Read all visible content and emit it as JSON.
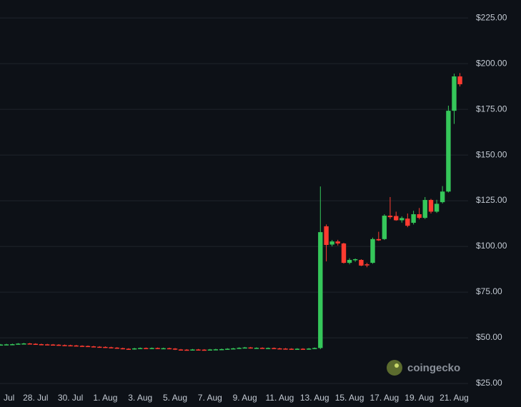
{
  "chart_data": {
    "type": "candlestick",
    "x": [
      0,
      0.33,
      0.67,
      1,
      1.33,
      1.67,
      2,
      2.33,
      2.67,
      3,
      3.33,
      3.67,
      4,
      4.33,
      4.67,
      5,
      5.33,
      5.67,
      6,
      6.33,
      6.67,
      7,
      7.33,
      7.67,
      8,
      8.33,
      8.67,
      9,
      9.33,
      9.67,
      10,
      10.33,
      10.67,
      11,
      11.33,
      11.67,
      12,
      12.33,
      12.67,
      13,
      13.33,
      13.67,
      14,
      14.33,
      14.67,
      15,
      15.33,
      15.67,
      16,
      16.33,
      16.67,
      17,
      17.33,
      17.67,
      18,
      18.33,
      18.67,
      19,
      19.33,
      19.67,
      20,
      20.33,
      20.67,
      21,
      21.33,
      21.67,
      22,
      22.33,
      22.67,
      23,
      23.33,
      23.67,
      24,
      24.33,
      24.67,
      25,
      25.33,
      25.67,
      26,
      26.33
    ],
    "open": [
      46.2,
      46.3,
      46.4,
      46.5,
      46.8,
      46.9,
      46.7,
      46.5,
      46.4,
      46.3,
      46.2,
      46.0,
      45.9,
      45.8,
      45.6,
      45.5,
      45.3,
      45.1,
      45.0,
      44.8,
      44.6,
      44.3,
      44.0,
      43.8,
      44.2,
      44.4,
      44.3,
      44.4,
      44.2,
      44.3,
      44.1,
      43.6,
      43.5,
      43.4,
      43.6,
      43.5,
      43.4,
      43.6,
      43.7,
      43.8,
      44.0,
      44.2,
      44.5,
      44.7,
      44.4,
      44.5,
      44.3,
      44.4,
      44.2,
      44.1,
      44.0,
      43.9,
      44.0,
      43.8,
      44.1,
      44.4,
      111.0,
      101.0,
      102.7,
      101.6,
      91.0,
      92.6,
      92.6,
      90.2,
      91.0,
      104.0,
      104.0,
      116.8,
      116.6,
      114.3,
      115.2,
      112.9,
      117.6,
      115.6,
      125.4,
      119.0,
      124.2,
      130.0,
      174.2,
      193.0
    ],
    "high": [
      46.6,
      46.7,
      46.8,
      47.1,
      47.2,
      47.2,
      47.0,
      46.8,
      46.7,
      46.6,
      46.5,
      46.3,
      46.2,
      46.1,
      45.9,
      45.8,
      45.6,
      45.4,
      45.3,
      45.1,
      44.9,
      44.6,
      44.3,
      44.5,
      44.7,
      44.7,
      44.7,
      44.7,
      44.6,
      44.6,
      44.4,
      43.9,
      43.8,
      43.9,
      43.9,
      43.8,
      43.9,
      44.0,
      44.1,
      44.3,
      44.5,
      44.8,
      45.0,
      45.0,
      44.8,
      44.8,
      44.7,
      44.7,
      44.5,
      44.4,
      44.3,
      44.3,
      44.3,
      44.4,
      44.7,
      132.8,
      112.0,
      103.5,
      103.6,
      102.0,
      93.5,
      93.4,
      93.0,
      91.0,
      104.8,
      108.0,
      117.6,
      127.0,
      119.0,
      116.4,
      118.0,
      119.5,
      121.0,
      127.0,
      126.0,
      125.5,
      133.0,
      177.0,
      194.5,
      194.8
    ],
    "low": [
      45.9,
      46.0,
      46.1,
      46.2,
      46.5,
      46.4,
      46.2,
      46.1,
      46.0,
      45.9,
      45.7,
      45.6,
      45.5,
      45.3,
      45.2,
      45.0,
      44.8,
      44.7,
      44.5,
      44.3,
      44.0,
      43.7,
      43.5,
      43.5,
      43.9,
      44.0,
      44.0,
      43.9,
      43.9,
      43.8,
      43.3,
      43.2,
      43.1,
      43.1,
      43.2,
      43.1,
      43.1,
      43.3,
      43.4,
      43.5,
      43.7,
      43.9,
      44.2,
      44.1,
      44.1,
      44.0,
      44.0,
      43.9,
      43.8,
      43.7,
      43.6,
      43.6,
      43.5,
      43.5,
      43.8,
      43.8,
      91.8,
      100.0,
      100.5,
      90.6,
      90.2,
      91.6,
      89.2,
      88.6,
      90.5,
      103.0,
      103.5,
      115.0,
      114.0,
      113.0,
      110.5,
      112.0,
      114.8,
      115.0,
      118.0,
      118.3,
      123.5,
      129.5,
      167.0,
      187.5
    ],
    "close": [
      46.3,
      46.4,
      46.5,
      46.8,
      46.9,
      46.7,
      46.5,
      46.4,
      46.3,
      46.2,
      46.0,
      45.9,
      45.8,
      45.6,
      45.5,
      45.3,
      45.1,
      45.0,
      44.8,
      44.6,
      44.3,
      44.0,
      43.8,
      44.2,
      44.4,
      44.3,
      44.4,
      44.2,
      44.3,
      44.1,
      43.6,
      43.5,
      43.4,
      43.6,
      43.5,
      43.4,
      43.6,
      43.7,
      43.8,
      44.0,
      44.2,
      44.5,
      44.7,
      44.4,
      44.5,
      44.3,
      44.4,
      44.2,
      44.1,
      44.0,
      43.9,
      44.0,
      43.8,
      44.1,
      44.4,
      107.8,
      100.8,
      102.7,
      101.6,
      91.0,
      92.6,
      93.0,
      89.5,
      89.6,
      104.0,
      103.3,
      116.8,
      116.0,
      114.3,
      115.5,
      111.3,
      117.6,
      115.6,
      125.4,
      119.0,
      123.3,
      130.0,
      174.2,
      193.0,
      188.7
    ],
    "up_color": "#35c75a",
    "down_color": "#ff3b30",
    "xlim": [
      -0.04,
      26.8
    ],
    "xticks": [
      {
        "value": 0,
        "label": "Jul"
      },
      {
        "value": 2,
        "label": "28. Jul"
      },
      {
        "value": 4,
        "label": "30. Jul"
      },
      {
        "value": 6,
        "label": "1. Aug"
      },
      {
        "value": 8,
        "label": "3. Aug"
      },
      {
        "value": 10,
        "label": "5. Aug"
      },
      {
        "value": 12,
        "label": "7. Aug"
      },
      {
        "value": 14,
        "label": "9. Aug"
      },
      {
        "value": 16,
        "label": "11. Aug"
      },
      {
        "value": 18,
        "label": "13. Aug"
      },
      {
        "value": 20,
        "label": "15. Aug"
      },
      {
        "value": 22,
        "label": "17. Aug"
      },
      {
        "value": 24,
        "label": "19. Aug"
      },
      {
        "value": 26,
        "label": "21. Aug"
      }
    ],
    "ylim": [
      21.9,
      234.8
    ],
    "yticks": [
      {
        "value": 25,
        "label": "$25.00"
      },
      {
        "value": 50,
        "label": "$50.00"
      },
      {
        "value": 75,
        "label": "$75.00"
      },
      {
        "value": 100,
        "label": "$100.00"
      },
      {
        "value": 125,
        "label": "$125.00"
      },
      {
        "value": 150,
        "label": "$150.00"
      },
      {
        "value": 175,
        "label": "$175.00"
      },
      {
        "value": 200,
        "label": "$200.00"
      },
      {
        "value": 225,
        "label": "$225.00"
      }
    ],
    "grid": true,
    "watermark": "coingecko"
  }
}
